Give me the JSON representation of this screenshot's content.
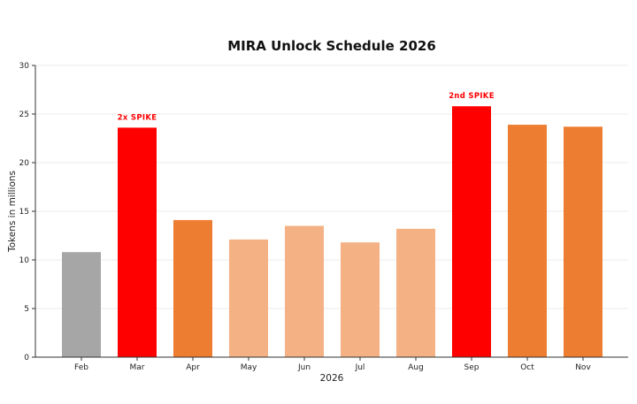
{
  "chart_data": {
    "type": "bar",
    "title": "MIRA Unlock Schedule 2026",
    "xlabel": "2026",
    "ylabel": "Tokens in millions",
    "ylim": [
      0,
      30
    ],
    "yticks": [
      0,
      5,
      10,
      15,
      20,
      25,
      30
    ],
    "grid": true,
    "categories": [
      "Feb",
      "Mar",
      "Apr",
      "May",
      "Jun",
      "Jul",
      "Aug",
      "Sep",
      "Oct",
      "Nov"
    ],
    "values": [
      10.8,
      23.6,
      14.1,
      12.1,
      13.5,
      11.8,
      13.2,
      25.8,
      23.9,
      23.7
    ],
    "colors": [
      "#a6a6a6",
      "#ff0000",
      "#ed7d31",
      "#f4b183",
      "#f4b183",
      "#f4b183",
      "#f4b183",
      "#ff0000",
      "#ed7d31",
      "#ed7d31"
    ],
    "annotations": [
      {
        "category": "Mar",
        "text": "2x SPIKE",
        "color": "#ff0000"
      },
      {
        "category": "Sep",
        "text": "2nd SPIKE",
        "color": "#ff0000"
      }
    ]
  }
}
